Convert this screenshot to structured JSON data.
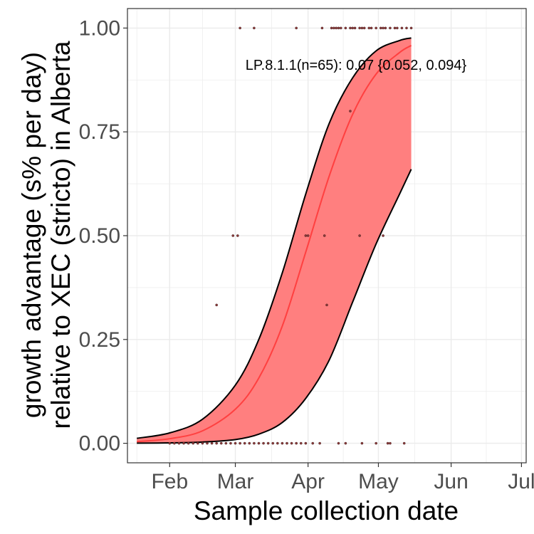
{
  "chart_data": {
    "type": "scatter",
    "title": "",
    "xlabel": "Sample collection date",
    "ylabel_lines": [
      "growth advantage (s% per day)",
      "relative to XEC (stricto) in Alberta"
    ],
    "x_axis_type": "date",
    "xlim": [
      "2025-01-14",
      "2025-07-03"
    ],
    "ylim": [
      -0.047,
      1.047
    ],
    "x_ticks": [
      {
        "date": "2025-02-01",
        "label": "Feb"
      },
      {
        "date": "2025-03-01",
        "label": "Mar"
      },
      {
        "date": "2025-04-01",
        "label": "Apr"
      },
      {
        "date": "2025-05-01",
        "label": "May"
      },
      {
        "date": "2025-06-01",
        "label": "Jun"
      },
      {
        "date": "2025-07-01",
        "label": "Jul"
      }
    ],
    "y_ticks": [
      {
        "value": 0.0,
        "label": "0.00"
      },
      {
        "value": 0.25,
        "label": "0.25"
      },
      {
        "value": 0.5,
        "label": "0.50"
      },
      {
        "value": 0.75,
        "label": "0.75"
      },
      {
        "value": 1.0,
        "label": "1.00"
      }
    ],
    "grid": true,
    "legend": "none",
    "annotation": "LP.8.1.1(n=65): 0.07 {0.052, 0.094}",
    "colors": {
      "ribbon_fill": "#ff7f7f",
      "fit_line": "#ff4040",
      "ci_line": "#000000",
      "points": "#8b3a3a",
      "grid": "#ebebeb",
      "panel_border": "#333333"
    },
    "series": [
      {
        "kind": "fit",
        "points": [
          {
            "x": "2025-01-18",
            "y": 0.004
          },
          {
            "x": "2025-02-01",
            "y": 0.011
          },
          {
            "x": "2025-02-15",
            "y": 0.03
          },
          {
            "x": "2025-03-01",
            "y": 0.082
          },
          {
            "x": "2025-03-11",
            "y": 0.157
          },
          {
            "x": "2025-03-21",
            "y": 0.282
          },
          {
            "x": "2025-03-31",
            "y": 0.46
          },
          {
            "x": "2025-04-10",
            "y": 0.643
          },
          {
            "x": "2025-04-20",
            "y": 0.792
          },
          {
            "x": "2025-04-30",
            "y": 0.889
          },
          {
            "x": "2025-05-10",
            "y": 0.941
          },
          {
            "x": "2025-05-15",
            "y": 0.958
          }
        ]
      },
      {
        "kind": "ci_upper",
        "points": [
          {
            "x": "2025-01-18",
            "y": 0.012
          },
          {
            "x": "2025-02-01",
            "y": 0.025
          },
          {
            "x": "2025-02-15",
            "y": 0.058
          },
          {
            "x": "2025-03-01",
            "y": 0.14
          },
          {
            "x": "2025-03-11",
            "y": 0.25
          },
          {
            "x": "2025-03-21",
            "y": 0.41
          },
          {
            "x": "2025-03-31",
            "y": 0.6
          },
          {
            "x": "2025-04-10",
            "y": 0.77
          },
          {
            "x": "2025-04-20",
            "y": 0.88
          },
          {
            "x": "2025-04-30",
            "y": 0.945
          },
          {
            "x": "2025-05-10",
            "y": 0.97
          },
          {
            "x": "2025-05-15",
            "y": 0.976
          }
        ]
      },
      {
        "kind": "ci_lower",
        "points": [
          {
            "x": "2025-01-18",
            "y": 0.0003
          },
          {
            "x": "2025-02-01",
            "y": 0.001
          },
          {
            "x": "2025-02-15",
            "y": 0.003
          },
          {
            "x": "2025-03-01",
            "y": 0.009
          },
          {
            "x": "2025-03-11",
            "y": 0.022
          },
          {
            "x": "2025-03-21",
            "y": 0.05
          },
          {
            "x": "2025-03-31",
            "y": 0.108
          },
          {
            "x": "2025-04-10",
            "y": 0.2
          },
          {
            "x": "2025-04-20",
            "y": 0.34
          },
          {
            "x": "2025-04-30",
            "y": 0.48
          },
          {
            "x": "2025-05-10",
            "y": 0.6
          },
          {
            "x": "2025-05-15",
            "y": 0.66
          }
        ]
      },
      {
        "kind": "observations",
        "points": [
          {
            "x": "2025-02-01",
            "y": 0
          },
          {
            "x": "2025-02-03",
            "y": 0
          },
          {
            "x": "2025-02-05",
            "y": 0
          },
          {
            "x": "2025-02-07",
            "y": 0
          },
          {
            "x": "2025-02-09",
            "y": 0
          },
          {
            "x": "2025-02-11",
            "y": 0
          },
          {
            "x": "2025-02-13",
            "y": 0
          },
          {
            "x": "2025-02-15",
            "y": 0
          },
          {
            "x": "2025-02-17",
            "y": 0
          },
          {
            "x": "2025-02-19",
            "y": 0
          },
          {
            "x": "2025-02-21",
            "y": 0
          },
          {
            "x": "2025-02-23",
            "y": 0
          },
          {
            "x": "2025-02-25",
            "y": 0
          },
          {
            "x": "2025-02-27",
            "y": 0
          },
          {
            "x": "2025-03-01",
            "y": 0
          },
          {
            "x": "2025-03-03",
            "y": 0
          },
          {
            "x": "2025-03-05",
            "y": 0
          },
          {
            "x": "2025-03-07",
            "y": 0
          },
          {
            "x": "2025-03-09",
            "y": 0
          },
          {
            "x": "2025-03-11",
            "y": 0
          },
          {
            "x": "2025-03-13",
            "y": 0
          },
          {
            "x": "2025-03-15",
            "y": 0
          },
          {
            "x": "2025-03-17",
            "y": 0
          },
          {
            "x": "2025-03-19",
            "y": 0
          },
          {
            "x": "2025-03-21",
            "y": 0
          },
          {
            "x": "2025-03-23",
            "y": 0
          },
          {
            "x": "2025-03-25",
            "y": 0
          },
          {
            "x": "2025-03-27",
            "y": 0
          },
          {
            "x": "2025-03-29",
            "y": 0
          },
          {
            "x": "2025-03-31",
            "y": 0
          },
          {
            "x": "2025-04-03",
            "y": 0
          },
          {
            "x": "2025-04-06",
            "y": 0
          },
          {
            "x": "2025-04-14",
            "y": 0
          },
          {
            "x": "2025-04-17",
            "y": 0
          },
          {
            "x": "2025-04-24",
            "y": 0
          },
          {
            "x": "2025-04-30",
            "y": 0
          },
          {
            "x": "2025-05-05",
            "y": 0
          },
          {
            "x": "2025-05-06",
            "y": 0
          },
          {
            "x": "2025-05-12",
            "y": 0
          },
          {
            "x": "2025-02-21",
            "y": 0.333
          },
          {
            "x": "2025-04-09",
            "y": 0.333
          },
          {
            "x": "2025-02-28",
            "y": 0.5
          },
          {
            "x": "2025-03-02",
            "y": 0.5
          },
          {
            "x": "2025-03-31",
            "y": 0.5
          },
          {
            "x": "2025-04-01",
            "y": 0.5
          },
          {
            "x": "2025-04-08",
            "y": 0.5
          },
          {
            "x": "2025-04-23",
            "y": 0.5
          },
          {
            "x": "2025-05-03",
            "y": 0.5
          },
          {
            "x": "2025-04-19",
            "y": 0.8
          },
          {
            "x": "2025-03-03",
            "y": 1
          },
          {
            "x": "2025-03-09",
            "y": 1
          },
          {
            "x": "2025-03-27",
            "y": 1
          },
          {
            "x": "2025-04-07",
            "y": 1
          },
          {
            "x": "2025-04-11",
            "y": 1
          },
          {
            "x": "2025-04-12",
            "y": 1
          },
          {
            "x": "2025-04-13",
            "y": 1
          },
          {
            "x": "2025-04-14",
            "y": 1
          },
          {
            "x": "2025-04-15",
            "y": 1
          },
          {
            "x": "2025-04-17",
            "y": 1
          },
          {
            "x": "2025-04-19",
            "y": 1
          },
          {
            "x": "2025-04-20",
            "y": 1
          },
          {
            "x": "2025-04-21",
            "y": 1
          },
          {
            "x": "2025-04-23",
            "y": 1
          },
          {
            "x": "2025-04-24",
            "y": 1
          },
          {
            "x": "2025-04-25",
            "y": 1
          },
          {
            "x": "2025-04-27",
            "y": 1
          },
          {
            "x": "2025-04-28",
            "y": 1
          },
          {
            "x": "2025-04-30",
            "y": 1
          },
          {
            "x": "2025-05-02",
            "y": 1
          },
          {
            "x": "2025-05-03",
            "y": 1
          },
          {
            "x": "2025-05-04",
            "y": 1
          },
          {
            "x": "2025-05-06",
            "y": 1
          },
          {
            "x": "2025-05-08",
            "y": 1
          },
          {
            "x": "2025-05-09",
            "y": 1
          },
          {
            "x": "2025-05-11",
            "y": 1
          },
          {
            "x": "2025-05-13",
            "y": 1
          },
          {
            "x": "2025-05-15",
            "y": 1
          }
        ]
      }
    ]
  }
}
